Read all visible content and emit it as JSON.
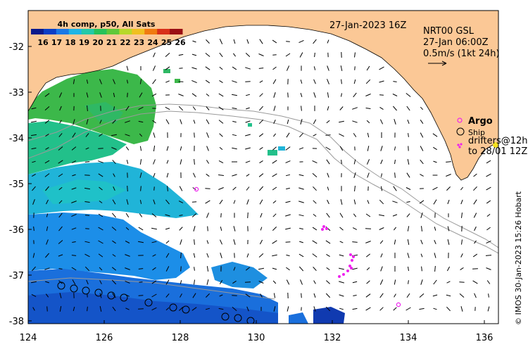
{
  "colorbar": {
    "title": "4h comp, p50, All Sats",
    "ticks": [
      "16",
      "17",
      "18",
      "19",
      "20",
      "21",
      "22",
      "23",
      "24",
      "25",
      "26"
    ],
    "colors": [
      "#0a1a8c",
      "#0b3fc6",
      "#1a78e6",
      "#1fb5e6",
      "#24c9a8",
      "#27c25a",
      "#5fc83a",
      "#b8d82a",
      "#f0c020",
      "#f07a10",
      "#d8301a",
      "#9a0f14"
    ]
  },
  "header": {
    "date": "27-Jan-2023 16Z",
    "product": "NRT00 GSL",
    "product_time": "27-Jan 06:00Z",
    "scale": "0.5m/s (1kt 24h)"
  },
  "legend": {
    "argo": "Argo",
    "ship": "Ship",
    "drifters_line1": "drifters@12h",
    "drifters_line2": "to 28/01 12Z"
  },
  "axes": {
    "x_labels": [
      "124",
      "126",
      "128",
      "130",
      "132",
      "134",
      "136"
    ],
    "y_labels": [
      "-32",
      "-33",
      "-34",
      "-35",
      "-36",
      "-37",
      "-38"
    ]
  },
  "credit": "© IMOS 30-Jan-2023 15:26 Hobart",
  "colors": {
    "land": "#fbc896",
    "argo": "#ee22ee",
    "drifter": "#ee22ee",
    "track": "#9a9a9a",
    "ship": "#000000"
  }
}
